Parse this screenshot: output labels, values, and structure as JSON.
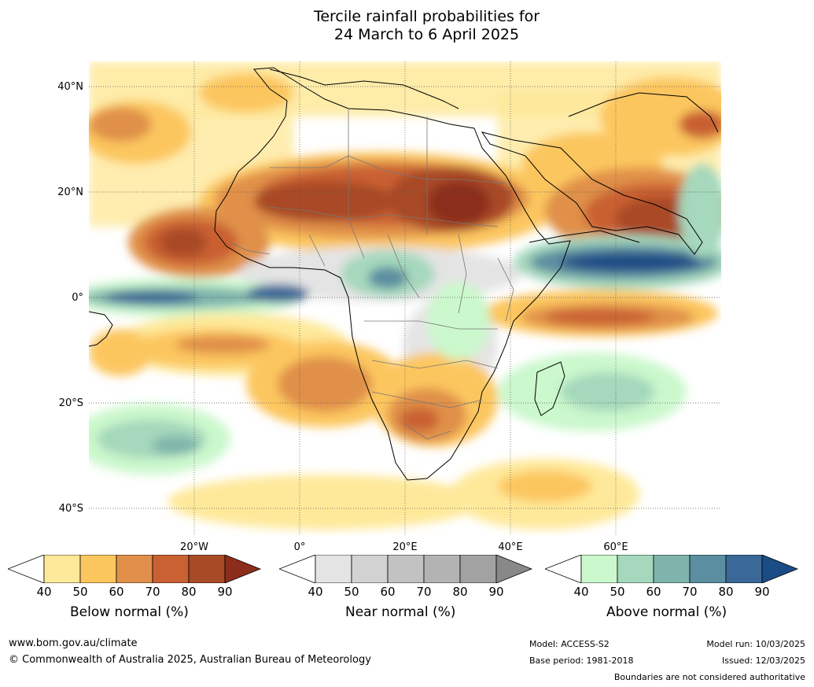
{
  "title_line1": "Tercile rainfall probabilities for",
  "title_line2": "24 March to 6 April 2025",
  "lat_labels": [
    "40°N",
    "20°N",
    "0°",
    "20°S",
    "40°S"
  ],
  "lon_labels": [
    "20°W",
    "0°",
    "20°E",
    "40°E",
    "60°E"
  ],
  "colorbars": {
    "below": {
      "label": "Below normal (%)",
      "ticks": [
        "40",
        "50",
        "60",
        "70",
        "80",
        "90"
      ],
      "colors": [
        "#ffffff",
        "#fee99a",
        "#fcc65f",
        "#e0904a",
        "#c96132",
        "#a94a27",
        "#8c2d1b"
      ]
    },
    "near": {
      "label": "Near normal (%)",
      "ticks": [
        "40",
        "50",
        "60",
        "70",
        "80",
        "90"
      ],
      "colors": [
        "#ffffff",
        "#e4e4e4",
        "#d2d2d2",
        "#c2c2c2",
        "#b3b3b3",
        "#a2a2a2",
        "#888888"
      ]
    },
    "above": {
      "label": "Above normal (%)",
      "ticks": [
        "40",
        "50",
        "60",
        "70",
        "80",
        "90"
      ],
      "colors": [
        "#ffffff",
        "#cbf8cc",
        "#a5d8bc",
        "#7fb4ac",
        "#5b8ea0",
        "#3a6897",
        "#1c4c85"
      ]
    }
  },
  "footer": {
    "url": "www.bom.gov.au/climate",
    "copyright": "© Commonwealth of Australia 2025, Australian Bureau of Meteorology",
    "model": "Model: ACCESS-S2",
    "base_period": "Base period: 1981-2018",
    "model_run": "Model run: 10/03/2025",
    "issued": "Issued: 12/03/2025",
    "disclaimer": "Boundaries are not considered authoritative"
  }
}
